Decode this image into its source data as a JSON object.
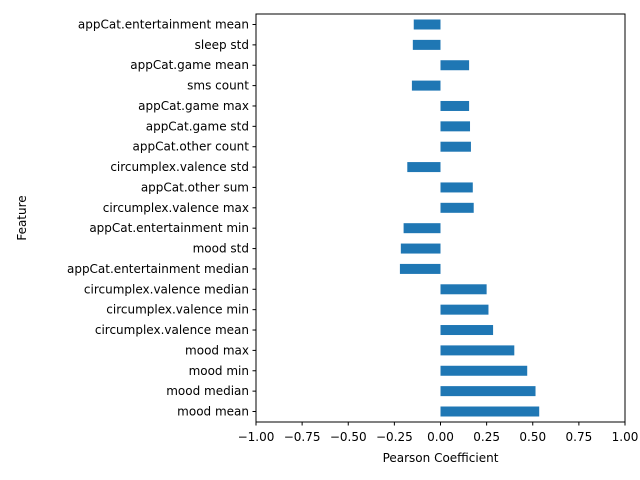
{
  "chart_data": {
    "type": "bar",
    "orientation": "horizontal",
    "xlabel": "Pearson Coefficient",
    "ylabel": "Feature",
    "xlim": [
      -1.0,
      1.0
    ],
    "xticks": [
      "−1.00",
      "−0.75",
      "−0.50",
      "−0.25",
      "0.00",
      "0.25",
      "0.50",
      "0.75",
      "1.00"
    ],
    "grid": false,
    "bar_color": "#1f77b4",
    "categories": [
      "appCat.entertainment mean",
      "sleep std",
      "appCat.game mean",
      "sms count",
      "appCat.game max",
      "appCat.game std",
      "appCat.other count",
      "circumplex.valence std",
      "appCat.other sum",
      "circumplex.valence max",
      "appCat.entertainment min",
      "mood std",
      "appCat.entertainment median",
      "circumplex.valence median",
      "circumplex.valence min",
      "circumplex.valence mean",
      "mood max",
      "mood min",
      "mood median",
      "mood mean"
    ],
    "values": [
      -0.145,
      -0.15,
      0.155,
      -0.155,
      0.155,
      0.16,
      0.165,
      -0.18,
      0.175,
      0.18,
      -0.2,
      -0.215,
      -0.22,
      0.25,
      0.26,
      0.285,
      0.4,
      0.47,
      0.515,
      0.535
    ]
  }
}
